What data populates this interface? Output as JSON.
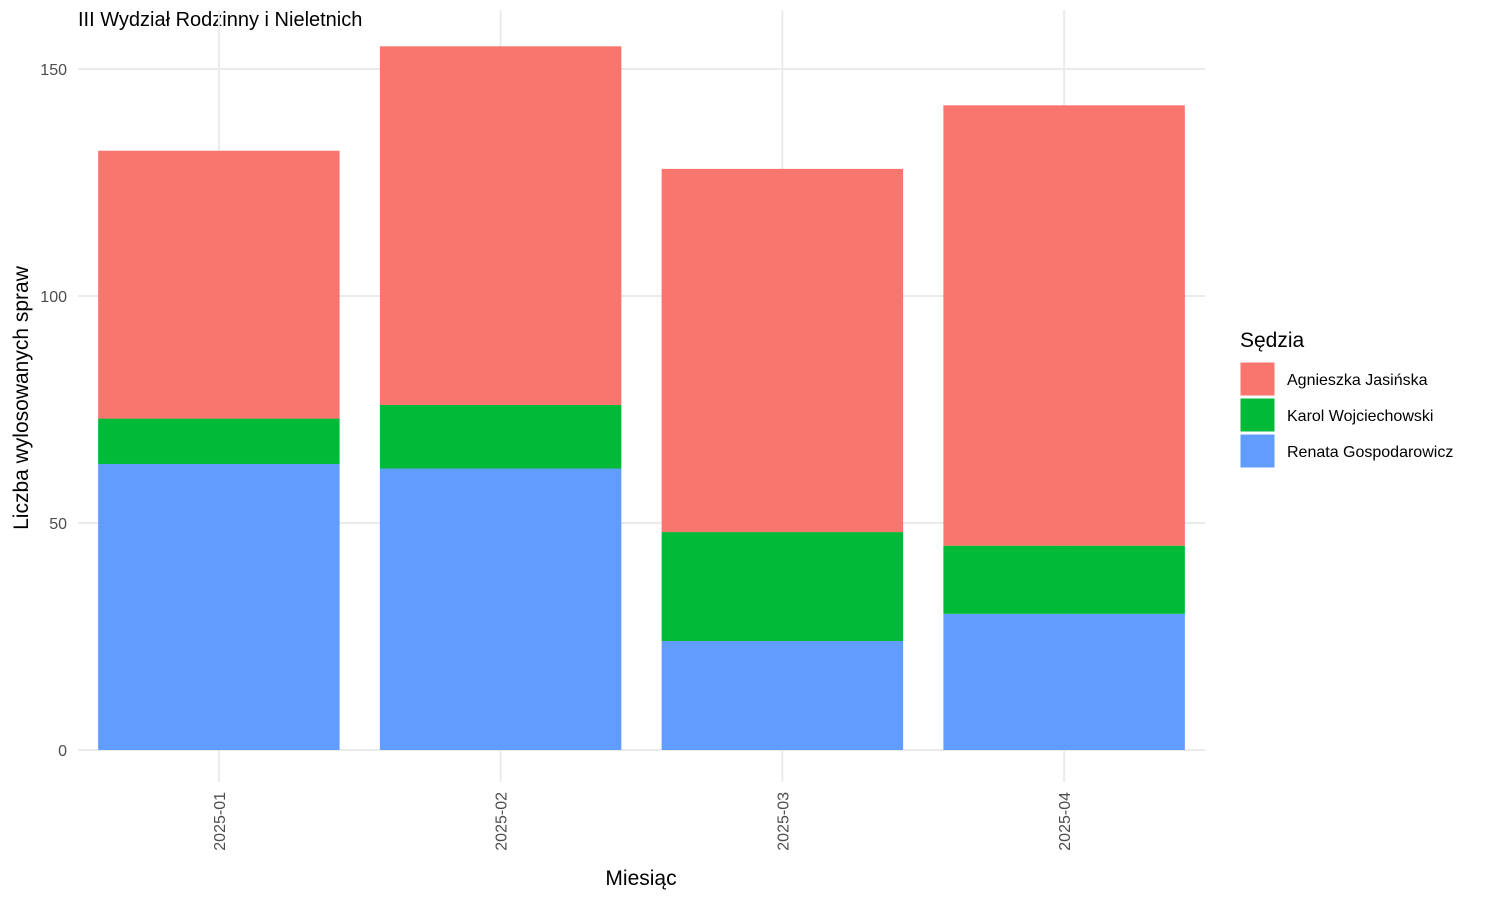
{
  "chart_data": {
    "type": "bar",
    "stacked": true,
    "title": "III Wydział Rodzinny i Nieletnich",
    "xlabel": "Miesiąc",
    "ylabel": "Liczba wylosowanych spraw",
    "categories": [
      "2025-01",
      "2025-02",
      "2025-03",
      "2025-04"
    ],
    "ylim": [
      0,
      160
    ],
    "yticks": [
      0,
      50,
      100,
      150
    ],
    "grid": true,
    "legend": {
      "title": "Sędzia",
      "placement": "right"
    },
    "series": [
      {
        "name": "Renata Gospodarowicz",
        "color": "#619CFF",
        "values": [
          63,
          62,
          24,
          30
        ]
      },
      {
        "name": "Karol Wojciechowski",
        "color": "#00BA38",
        "values": [
          10,
          14,
          24,
          15
        ]
      },
      {
        "name": "Agnieszka Jasińska",
        "color": "#F8766D",
        "values": [
          59,
          79,
          80,
          97
        ]
      }
    ],
    "legend_order": [
      "Agnieszka Jasińska",
      "Karol Wojciechowski",
      "Renata Gospodarowicz"
    ]
  }
}
